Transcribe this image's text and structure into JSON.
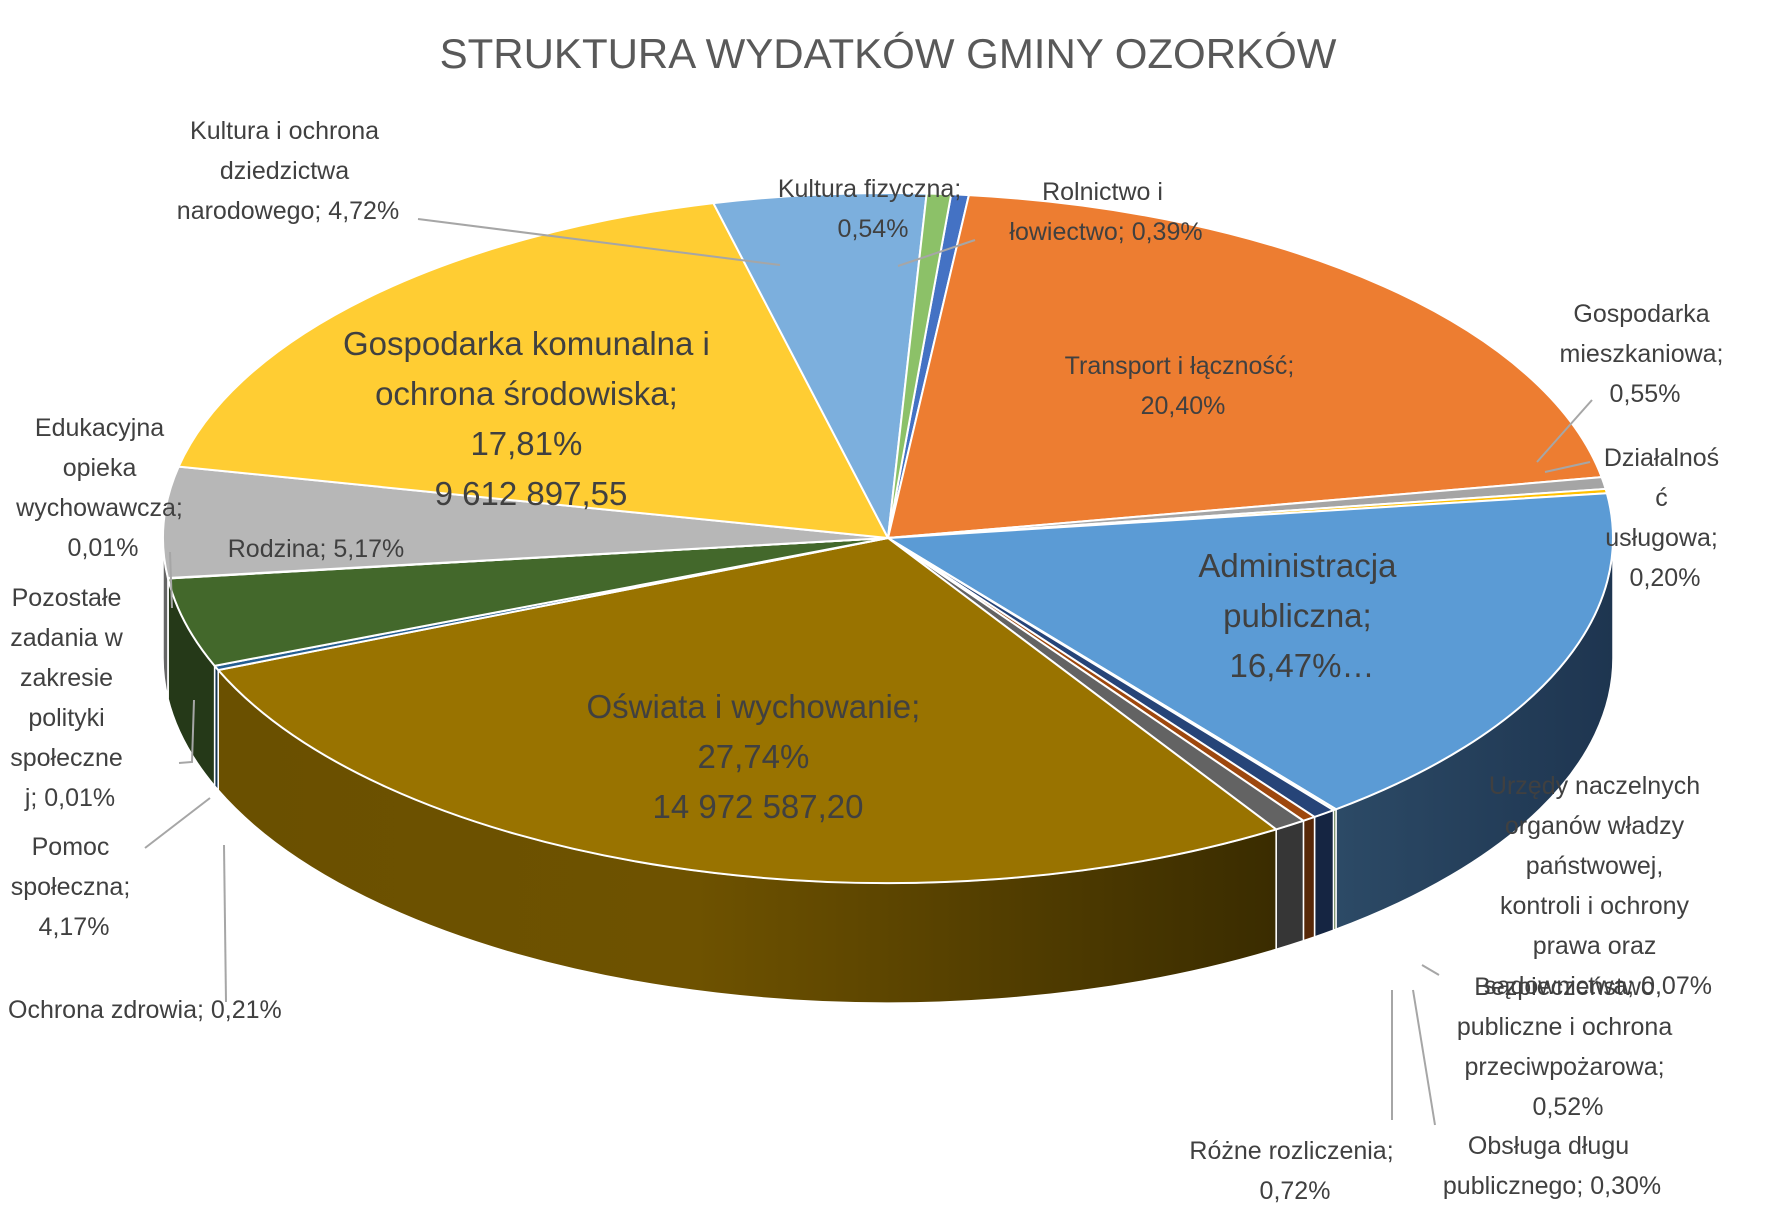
{
  "chart_data": {
    "type": "pie",
    "style": "3d",
    "title": "STRUKTURA WYDATKÓW GMINY OZORKÓW",
    "slices": [
      {
        "name": "Rolnictwo i łowiectwo",
        "percent": 0.39,
        "display": "0,39%",
        "color": "#4472c4"
      },
      {
        "name": "Transport i łączność",
        "percent": 20.4,
        "display": "20,40%",
        "color": "#ed7d31"
      },
      {
        "name": "Gospodarka mieszkaniowa",
        "percent": 0.55,
        "display": "0,55%",
        "color": "#a5a5a5"
      },
      {
        "name": "Działalność usługowa",
        "percent": 0.2,
        "display": "0,20%",
        "color": "#ffc000"
      },
      {
        "name": "Administracja publiczna",
        "percent": 16.47,
        "display": "16,47%…",
        "color": "#5b9bd5"
      },
      {
        "name": "Urzędy naczelnych organów władzy państwowej, kontroli i ochrony prawa oraz sądownictwa",
        "percent": 0.07,
        "display": "0,07%",
        "color": "#70ad47"
      },
      {
        "name": "Bezpieczeństwo publiczne i ochrona przeciwpożarowa",
        "percent": 0.52,
        "display": "0,52%",
        "color": "#264478"
      },
      {
        "name": "Obsługa długu publicznego",
        "percent": 0.3,
        "display": "0,30%",
        "color": "#9e480e"
      },
      {
        "name": "Różne rozliczenia",
        "percent": 0.72,
        "display": "0,72%",
        "color": "#636363"
      },
      {
        "name": "Oświata i wychowanie",
        "percent": 27.74,
        "display": "27,74%",
        "amount": "14 972 587,20",
        "color": "#997300"
      },
      {
        "name": "Ochrona zdrowia",
        "percent": 0.21,
        "display": "0,21%",
        "color": "#255e91"
      },
      {
        "name": "Pomoc społeczna",
        "percent": 4.17,
        "display": "4,17%",
        "color": "#43682b"
      },
      {
        "name": "Pozostałe zadania w zakresie polityki społecznej",
        "percent": 0.01,
        "display": "0,01%",
        "color": "#698ed0"
      },
      {
        "name": "Edukacyjna opieka wychowawcza",
        "percent": 0.01,
        "display": "0,01%",
        "color": "#f1975a"
      },
      {
        "name": "Rodzina",
        "percent": 5.17,
        "display": "5,17%",
        "color": "#b7b7b7"
      },
      {
        "name": "Gospodarka komunalna i ochrona środowiska",
        "percent": 17.81,
        "display": "17,81%",
        "amount": "9 612 897,55",
        "color": "#ffcd33"
      },
      {
        "name": "Kultura i ochrona dziedzictwa narodowego",
        "percent": 4.72,
        "display": "4,72%",
        "color": "#7cafdd"
      },
      {
        "name": "Kultura fizyczna",
        "percent": 0.54,
        "display": "0,54%",
        "color": "#8cc168"
      }
    ],
    "labels": {
      "rolnictwo": [
        "Rolnictwo i",
        "łowiectwo; 0,39%"
      ],
      "transport": [
        "Transport i łączność;",
        "20,40%"
      ],
      "mieszkaniowa": [
        "Gospodarka",
        "mieszkaniowa;",
        "0,55%"
      ],
      "uslugowa": [
        "Działalnoś",
        "ć",
        "usługowa;",
        "0,20%"
      ],
      "administracja": [
        "Administracja",
        "publiczna;",
        "16,47%…"
      ],
      "urzedy": [
        "Urzędy naczelnych",
        "organów władzy",
        "państwowej,",
        "kontroli i ochrony",
        "prawa oraz",
        "sądownictwa; 0,07%"
      ],
      "bezpieczenstwo": [
        "Bezpieczeństwo",
        "publiczne i ochrona",
        "przeciwpożarowa;",
        "0,52%"
      ],
      "obsluga": [
        "Obsługa długu",
        "publicznego; 0,30%"
      ],
      "rozne": [
        "Różne rozliczenia;",
        "0,72%"
      ],
      "oswiata": [
        "Oświata i wychowanie;",
        "27,74%",
        "14 972 587,20"
      ],
      "zdrowie": [
        "Ochrona zdrowia; 0,21%"
      ],
      "pomoc": [
        "Pomoc",
        "społeczna;",
        "4,17%"
      ],
      "pozostale": [
        "Pozostałe",
        "zadania w",
        "zakresie",
        "polityki",
        "społeczne",
        "j; 0,01%"
      ],
      "edukacyjna": [
        "Edukacyjna",
        "opieka",
        "wychowawcza;",
        "0,01%"
      ],
      "rodzina": [
        "Rodzina; 5,17%"
      ],
      "komunalna": [
        "Gospodarka komunalna i",
        "ochrona środowiska;",
        "17,81%",
        "9 612 897,55"
      ],
      "kultura": [
        "Kultura i ochrona",
        "dziedzictwa",
        "narodowego; 4,72%"
      ],
      "fizyczna": [
        "Kultura fizyczna;",
        "0,54%"
      ]
    }
  }
}
